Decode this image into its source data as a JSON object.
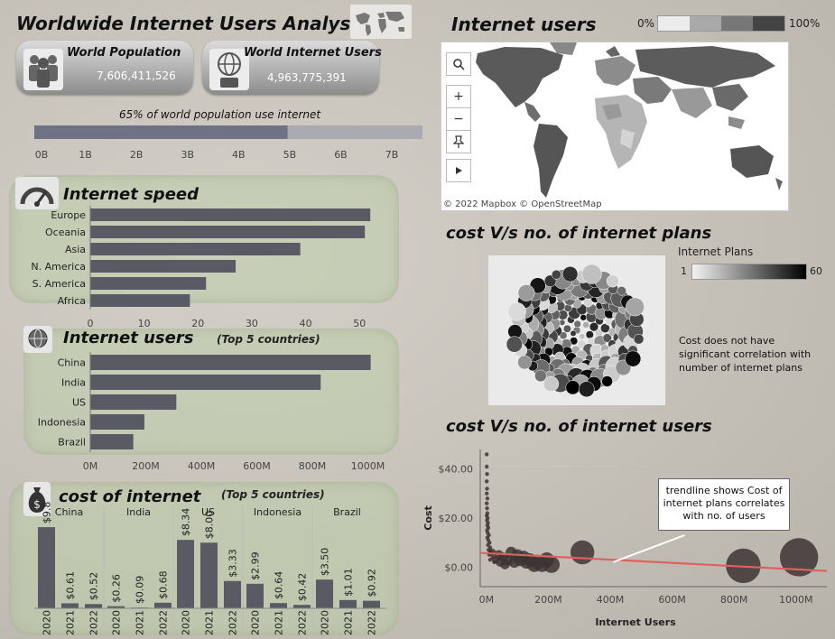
{
  "header": {
    "title": "Worldwide Internet Users Analysis",
    "map_title": "Internet users",
    "map_legend_min": "0%",
    "map_legend_max": "100%",
    "map_credit": "© 2022 Mapbox © OpenStreetMap"
  },
  "kpis": {
    "population_label": "World Population",
    "population_value": "7,606,411,526",
    "users_label": "World  Internet Users",
    "users_value": "4,963,775,391"
  },
  "progress": {
    "caption": "65% of world population use internet",
    "fraction": 0.65
  },
  "sections": {
    "speed_title": "Internet speed",
    "users_title": "Internet users",
    "users_subtitle": "(Top 5 countries)",
    "cost_title": "cost of internet",
    "cost_subtitle": "(Top 5 countries)",
    "plans_title": "cost V/s no. of internet plans",
    "plans_legend_title": "Internet Plans",
    "plans_legend_min": "1",
    "plans_legend_max": "60",
    "plans_note": "Cost does not have significant correlation with number of internet plans",
    "users_scatter_title": "cost V/s no. of internet users",
    "trend_note": "trendline shows Cost of internet plans correlates with no. of users"
  },
  "colors": {
    "bar": "#5a5a64",
    "trend": "#e06060",
    "progress_fill": "#6e7284",
    "progress_track": "#a9abb0"
  },
  "chart_data": [
    {
      "type": "bar",
      "id": "progress",
      "values": [
        4.96
      ],
      "max": 7.6,
      "xticks": [
        "0B",
        "1B",
        "2B",
        "3B",
        "4B",
        "5B",
        "6B",
        "7B"
      ],
      "xlim": [
        0,
        7.6
      ]
    },
    {
      "type": "bar",
      "id": "speed",
      "title": "Internet speed",
      "categories": [
        "Europe",
        "Oceania",
        "Asia",
        "N. America",
        "S. America",
        "Africa"
      ],
      "values": [
        52,
        51,
        39,
        27,
        21.5,
        18.5
      ],
      "xticks": [
        "0",
        "10",
        "20",
        "30",
        "40",
        "50"
      ],
      "xlim": [
        0,
        57
      ]
    },
    {
      "type": "bar",
      "id": "users",
      "title": "Internet users",
      "categories": [
        "China",
        "India",
        "US",
        "Indonesia",
        "Brazil"
      ],
      "values": [
        1010,
        830,
        310,
        195,
        155
      ],
      "xticks": [
        "0M",
        "200M",
        "400M",
        "600M",
        "800M",
        "1000M"
      ],
      "xlim": [
        0,
        1060
      ]
    },
    {
      "type": "bar",
      "id": "cost",
      "title": "cost of internet",
      "groups": [
        {
          "name": "China",
          "years": [
            "2020",
            "2021",
            "2022"
          ],
          "values": [
            9.89,
            0.61,
            0.52
          ],
          "labels": [
            "$9.89",
            "$0.61",
            "$0.52"
          ]
        },
        {
          "name": "India",
          "years": [
            "2020",
            "2021",
            "2022"
          ],
          "values": [
            0.26,
            0.09,
            0.68
          ],
          "labels": [
            "$0.26",
            "$0.09",
            "$0.68"
          ]
        },
        {
          "name": "US",
          "years": [
            "2020",
            "2021",
            "2022"
          ],
          "values": [
            8.34,
            8.0,
            3.33
          ],
          "labels": [
            "$8.34",
            "$8.00",
            "$3.33"
          ]
        },
        {
          "name": "Indonesia",
          "years": [
            "2020",
            "2021",
            "2022"
          ],
          "values": [
            2.99,
            0.64,
            0.42
          ],
          "labels": [
            "$2.99",
            "$0.64",
            "$0.42"
          ]
        },
        {
          "name": "Brazil",
          "years": [
            "2020",
            "2021",
            "2022"
          ],
          "values": [
            3.5,
            1.01,
            0.92
          ],
          "labels": [
            "$3.50",
            "$1.01",
            "$0.92"
          ]
        }
      ],
      "ylim": [
        0,
        11
      ]
    },
    {
      "type": "scatter",
      "id": "cost_vs_users",
      "title": "cost V/s no. of internet users",
      "xlabel": "Internet Users",
      "ylabel": "Cost",
      "xticks": [
        "0M",
        "200M",
        "400M",
        "600M",
        "800M",
        "1000M"
      ],
      "yticks": [
        "$0.00",
        "$20.00",
        "$40.00"
      ],
      "xlim": [
        -20,
        1100
      ],
      "ylim": [
        -8,
        48
      ],
      "points": [
        {
          "x": 1,
          "y": 46
        },
        {
          "x": 1,
          "y": 41
        },
        {
          "x": 2,
          "y": 38
        },
        {
          "x": 1,
          "y": 35
        },
        {
          "x": 2,
          "y": 32
        },
        {
          "x": 1,
          "y": 30
        },
        {
          "x": 3,
          "y": 28
        },
        {
          "x": 1,
          "y": 26
        },
        {
          "x": 2,
          "y": 24
        },
        {
          "x": 3,
          "y": 22
        },
        {
          "x": 1,
          "y": 21
        },
        {
          "x": 4,
          "y": 20
        },
        {
          "x": 2,
          "y": 19
        },
        {
          "x": 5,
          "y": 18
        },
        {
          "x": 3,
          "y": 17
        },
        {
          "x": 6,
          "y": 16
        },
        {
          "x": 2,
          "y": 15
        },
        {
          "x": 4,
          "y": 14
        },
        {
          "x": 8,
          "y": 13
        },
        {
          "x": 3,
          "y": 12
        },
        {
          "x": 6,
          "y": 11
        },
        {
          "x": 10,
          "y": 10
        },
        {
          "x": 5,
          "y": 9
        },
        {
          "x": 12,
          "y": 8
        },
        {
          "x": 7,
          "y": 7
        },
        {
          "x": 15,
          "y": 6
        },
        {
          "x": 9,
          "y": 5
        },
        {
          "x": 20,
          "y": 4
        },
        {
          "x": 12,
          "y": 3
        },
        {
          "x": 25,
          "y": 2
        },
        {
          "x": 18,
          "y": 6
        },
        {
          "x": 30,
          "y": 3
        },
        {
          "x": 40,
          "y": 5
        },
        {
          "x": 45,
          "y": 2
        },
        {
          "x": 55,
          "y": 4
        },
        {
          "x": 60,
          "y": 1
        },
        {
          "x": 70,
          "y": 3
        },
        {
          "x": 80,
          "y": 6
        },
        {
          "x": 90,
          "y": 2
        },
        {
          "x": 100,
          "y": 5
        },
        {
          "x": 110,
          "y": 3
        },
        {
          "x": 120,
          "y": 4
        },
        {
          "x": 130,
          "y": 2
        },
        {
          "x": 140,
          "y": 3
        },
        {
          "x": 155,
          "y": 1
        },
        {
          "x": 165,
          "y": 2
        },
        {
          "x": 180,
          "y": 1
        },
        {
          "x": 195,
          "y": 3
        },
        {
          "x": 210,
          "y": 1
        },
        {
          "x": 310,
          "y": 6
        },
        {
          "x": 830,
          "y": 0.5
        },
        {
          "x": 1010,
          "y": 4
        }
      ],
      "sizes": [
        1,
        1,
        1,
        1,
        1,
        1,
        1,
        1,
        1,
        1,
        1,
        1,
        1,
        1,
        1,
        1,
        1,
        1,
        1,
        1,
        1,
        1,
        1,
        1,
        1,
        1,
        1,
        1,
        1,
        1,
        3,
        3,
        4,
        4,
        4,
        4,
        5,
        5,
        5,
        5,
        6,
        6,
        6,
        6,
        7,
        7,
        7,
        7,
        8,
        12,
        18,
        20
      ],
      "trendline": {
        "y_at_x0": 5.8,
        "y_at_x1100": -1.6
      }
    },
    {
      "type": "scatter",
      "id": "cost_vs_plans",
      "title": "cost V/s no. of internet plans",
      "legend_title": "Internet Plans",
      "legend_range": [
        1,
        60
      ]
    }
  ]
}
